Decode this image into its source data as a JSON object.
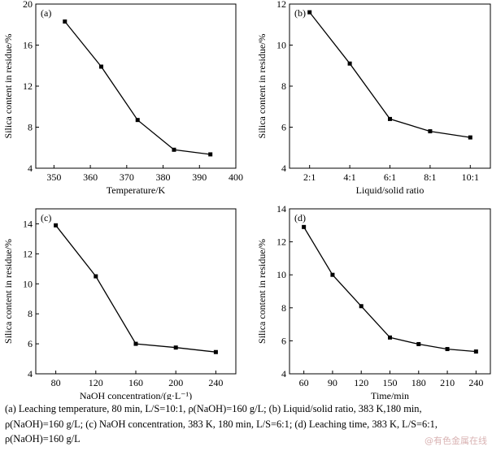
{
  "chart_data": [
    {
      "type": "line",
      "panel_label": "(a)",
      "xlabel": "Temperature/K",
      "ylabel": "Silica content in residue/%",
      "xlim": [
        345,
        400
      ],
      "ylim": [
        4,
        20
      ],
      "xticks": [
        350,
        360,
        370,
        380,
        390,
        400
      ],
      "yticks": [
        4,
        8,
        12,
        16,
        20
      ],
      "grid": false,
      "series": [
        {
          "x": [
            353,
            363,
            373,
            383,
            393
          ],
          "y": [
            18.3,
            13.9,
            8.7,
            5.8,
            5.35
          ]
        }
      ]
    },
    {
      "type": "line",
      "panel_label": "(b)",
      "xlabel": "Liquid/solid ratio",
      "ylabel": "Silica content in residue/%",
      "categories": [
        "2:1",
        "4:1",
        "6:1",
        "8:1",
        "10:1"
      ],
      "ylim": [
        4,
        12
      ],
      "yticks": [
        4,
        6,
        8,
        10,
        12
      ],
      "grid": false,
      "series": [
        {
          "y": [
            11.6,
            9.1,
            6.4,
            5.8,
            5.5
          ]
        }
      ]
    },
    {
      "type": "line",
      "panel_label": "(c)",
      "xlabel": "NaOH concentration/(g·L⁻¹)",
      "ylabel": "Silica content in residue/%",
      "xlim": [
        60,
        260
      ],
      "ylim": [
        4,
        15
      ],
      "xticks": [
        80,
        120,
        160,
        200,
        240
      ],
      "yticks": [
        4,
        6,
        8,
        10,
        12,
        14
      ],
      "grid": false,
      "series": [
        {
          "x": [
            80,
            120,
            160,
            200,
            240
          ],
          "y": [
            13.9,
            10.5,
            6.0,
            5.75,
            5.45
          ]
        }
      ]
    },
    {
      "type": "line",
      "panel_label": "(d)",
      "xlabel": "Time/min",
      "ylabel": "Silica content in residue/%",
      "xlim": [
        45,
        255
      ],
      "ylim": [
        4,
        14
      ],
      "xticks": [
        60,
        90,
        120,
        150,
        180,
        210,
        240
      ],
      "yticks": [
        4,
        6,
        8,
        10,
        12,
        14
      ],
      "grid": false,
      "series": [
        {
          "x": [
            60,
            90,
            120,
            150,
            180,
            210,
            240
          ],
          "y": [
            12.9,
            10.0,
            8.1,
            6.2,
            5.8,
            5.5,
            5.35
          ]
        }
      ]
    }
  ],
  "caption": {
    "line1": "(a) Leaching temperature, 80 min, L/S=10:1, ρ(NaOH)=160 g/L; (b) Liquid/solid ratio, 383 K,180 min,",
    "line2": "ρ(NaOH)=160 g/L; (c) NaOH concentration, 383 K, 180 min, L/S=6:1; (d) Leaching time, 383 K, L/S=6:1,",
    "line3": "ρ(NaOH)=160 g/L"
  },
  "watermark": "@有色金属在线"
}
